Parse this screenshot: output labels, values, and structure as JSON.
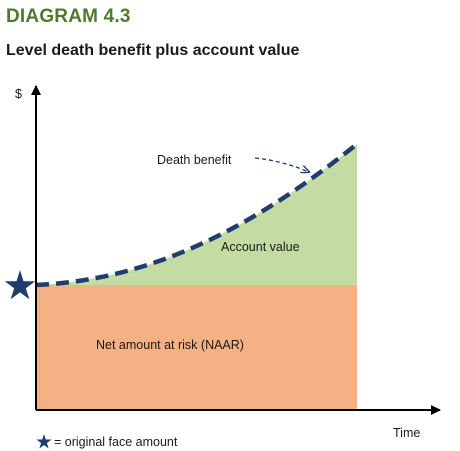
{
  "heading": "DIAGRAM 4.3",
  "subheading": "Level death benefit plus account value",
  "axis": {
    "y_label": "$",
    "x_label": "Time"
  },
  "regions": {
    "account_value": "Account value",
    "naar": "Net amount at risk (NAAR)"
  },
  "callouts": {
    "death_benefit": "Death benefit"
  },
  "legend": {
    "star_text": "= original face amount",
    "star_icon": "star-icon"
  },
  "colors": {
    "heading": "#4e7a2f",
    "account_value_fill": "#c4dca4",
    "naar_fill": "#f3b184",
    "death_benefit_line": "#1f3e6e",
    "star": "#1f3e6e",
    "axis": "#000000"
  }
}
